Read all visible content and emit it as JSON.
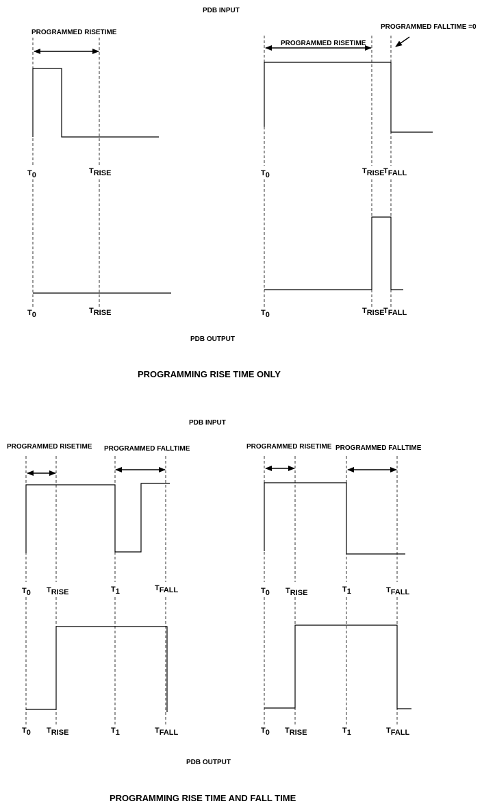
{
  "labels": {
    "pdb_input": "PDB INPUT",
    "pdb_output": "PDB OUTPUT",
    "programmed_risetime": "PROGRAMMED RISETIME",
    "programmed_falltime": "PROGRAMMED FALLTIME",
    "programmed_falltime_zero": "PROGRAMMED FALLTIME =0",
    "caption_rise_only": "PROGRAMMING RISE TIME ONLY",
    "caption_rise_and_fall": "PROGRAMMING RISE TIME AND FALL TIME"
  },
  "ticks": {
    "t": "T",
    "sub_0": "0",
    "sub_1": "1",
    "sub_rise": "RISE",
    "sub_fall": "FALL"
  }
}
